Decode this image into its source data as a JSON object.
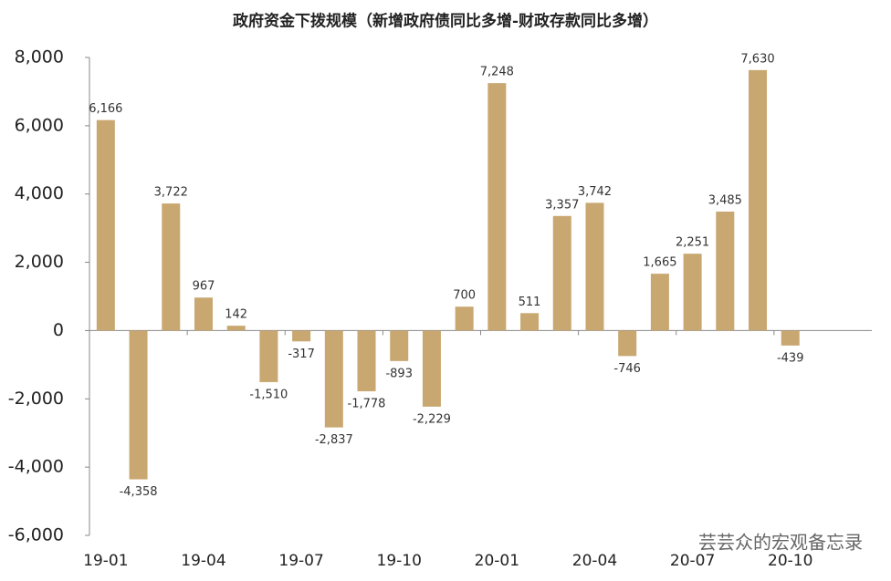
{
  "chart_data": {
    "type": "bar",
    "title": "政府资金下拨规模（新增政府债同比多增-财政存款同比多增）",
    "watermark": "芸芸众的宏观备忘录",
    "categories": [
      "19-01",
      null,
      null,
      "19-04",
      null,
      null,
      "19-07",
      null,
      null,
      "19-10",
      null,
      null,
      "20-01",
      null,
      null,
      "20-04",
      null,
      null,
      "20-07",
      null,
      null,
      "20-10",
      null,
      null
    ],
    "values": [
      6166,
      -4358,
      3722,
      967,
      142,
      -1510,
      -317,
      -2837,
      -1778,
      -893,
      -2229,
      700,
      7248,
      511,
      3357,
      3742,
      -746,
      1665,
      2251,
      3485,
      7630,
      -439,
      null,
      null
    ],
    "value_labels": [
      "6,166",
      "-4,358",
      "3,722",
      "967",
      "142",
      "-1,510",
      "-317",
      "-2,837",
      "-1,778",
      "-893",
      "-2,229",
      "700",
      "7,248",
      "511",
      "3,357",
      "3,742",
      "-746",
      "1,665",
      "2,251",
      "3,485",
      "7,630",
      "-439",
      null,
      null
    ],
    "color": "#c9a771",
    "ylim": [
      -6000,
      8000
    ],
    "yticks": [
      {
        "value": -6000,
        "label": "-6,000"
      },
      {
        "value": -4000,
        "label": "-4,000"
      },
      {
        "value": -2000,
        "label": "-2,000"
      },
      0,
      {
        "value": 2000,
        "label": "2,000"
      },
      {
        "value": 4000,
        "label": "4,000"
      },
      {
        "value": 6000,
        "label": "6,000"
      },
      {
        "value": 8000,
        "label": "8,000"
      }
    ],
    "grid": false
  }
}
